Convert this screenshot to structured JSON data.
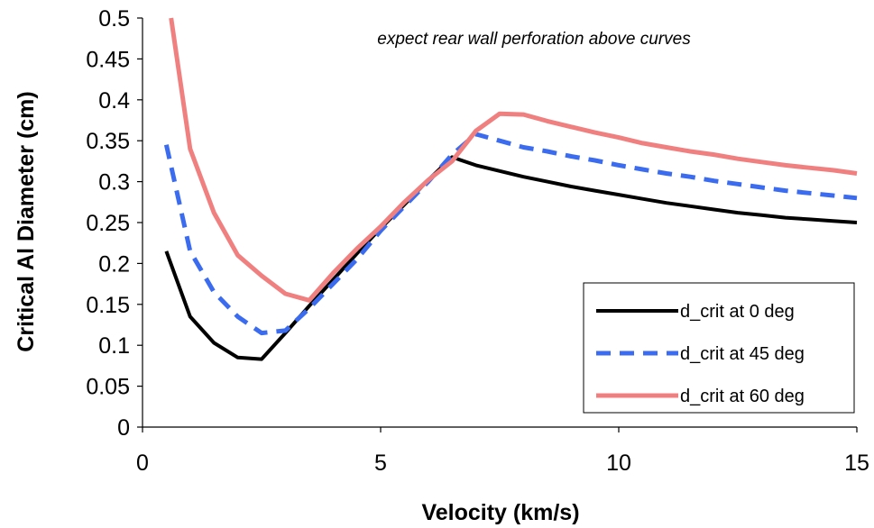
{
  "chart_data": {
    "type": "line",
    "xlabel": "Velocity (km/s)",
    "ylabel": "Critical Al Diameter (cm)",
    "annotation": "expect rear wall perforation above curves",
    "xlim": [
      0,
      15
    ],
    "ylim": [
      0,
      0.5
    ],
    "xticks": [
      "0",
      "5",
      "10",
      "15"
    ],
    "yticks": [
      "0",
      "0.05",
      "0.1",
      "0.15",
      "0.2",
      "0.25",
      "0.3",
      "0.35",
      "0.4",
      "0.45",
      "0.5"
    ],
    "grid": false,
    "legend_position": "bottom-right",
    "series": [
      {
        "name": "d_crit at 0 deg",
        "color": "#000000",
        "style": "solid",
        "x": [
          0.5,
          1.0,
          1.5,
          2.0,
          2.5,
          3.0,
          3.5,
          4.0,
          4.5,
          5.0,
          5.5,
          6.0,
          6.5,
          7.0,
          7.5,
          8.0,
          8.5,
          9.0,
          9.5,
          10.0,
          10.5,
          11.0,
          11.5,
          12.0,
          12.5,
          13.0,
          13.5,
          14.0,
          14.5,
          15.0
        ],
        "values": [
          0.215,
          0.135,
          0.103,
          0.085,
          0.083,
          0.115,
          0.148,
          0.18,
          0.212,
          0.243,
          0.272,
          0.302,
          0.33,
          0.32,
          0.313,
          0.306,
          0.3,
          0.294,
          0.289,
          0.284,
          0.279,
          0.274,
          0.27,
          0.266,
          0.262,
          0.259,
          0.256,
          0.254,
          0.252,
          0.25
        ]
      },
      {
        "name": "d_crit at 45 deg",
        "color": "#3b6cf0",
        "style": "dashed",
        "x": [
          0.5,
          1.0,
          1.5,
          2.0,
          2.5,
          3.0,
          3.5,
          4.0,
          4.5,
          5.0,
          5.5,
          6.0,
          6.5,
          7.0,
          7.5,
          8.0,
          8.5,
          9.0,
          9.5,
          10.0,
          10.5,
          11.0,
          11.5,
          12.0,
          12.5,
          13.0,
          13.5,
          14.0,
          14.5,
          15.0
        ],
        "values": [
          0.345,
          0.215,
          0.165,
          0.135,
          0.115,
          0.118,
          0.145,
          0.175,
          0.205,
          0.24,
          0.27,
          0.3,
          0.333,
          0.358,
          0.35,
          0.342,
          0.337,
          0.331,
          0.326,
          0.32,
          0.315,
          0.31,
          0.306,
          0.301,
          0.297,
          0.293,
          0.289,
          0.286,
          0.283,
          0.28
        ]
      },
      {
        "name": "d_crit at 60 deg",
        "color": "#f08080",
        "style": "solid",
        "x": [
          0.6,
          1.0,
          1.5,
          2.0,
          2.5,
          3.0,
          3.5,
          4.0,
          4.5,
          5.0,
          5.5,
          6.0,
          6.5,
          7.0,
          7.5,
          8.0,
          8.5,
          9.0,
          9.5,
          10.0,
          10.5,
          11.0,
          11.5,
          12.0,
          12.5,
          13.0,
          13.5,
          14.0,
          14.5,
          15.0
        ],
        "values": [
          0.5,
          0.34,
          0.262,
          0.21,
          0.185,
          0.163,
          0.155,
          0.188,
          0.218,
          0.245,
          0.275,
          0.302,
          0.325,
          0.362,
          0.383,
          0.382,
          0.374,
          0.367,
          0.36,
          0.354,
          0.347,
          0.342,
          0.337,
          0.333,
          0.328,
          0.324,
          0.32,
          0.317,
          0.314,
          0.31
        ]
      }
    ]
  }
}
